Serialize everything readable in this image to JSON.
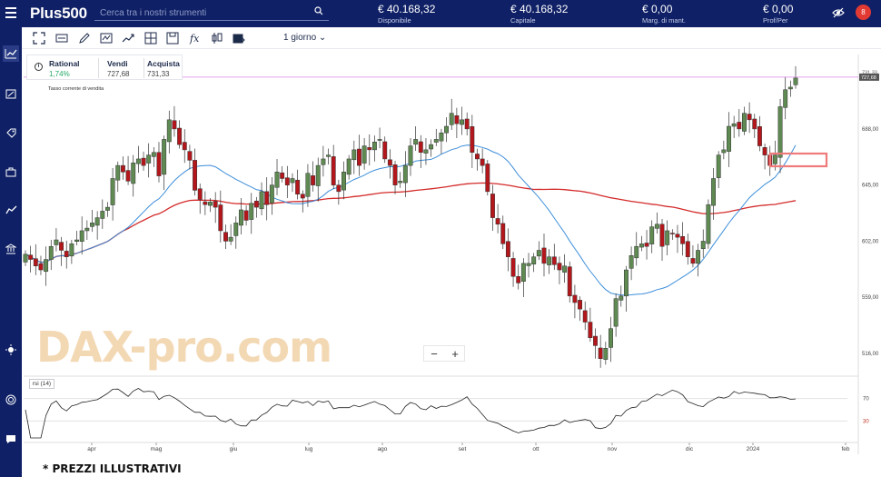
{
  "app": {
    "logo": "Plus500",
    "search_placeholder": "Cerca tra i nostri strumenti"
  },
  "account": [
    {
      "value": "€ 40.168,32",
      "label": "Disponibile"
    },
    {
      "value": "€ 40.168,32",
      "label": "Capitale"
    },
    {
      "value": "€ 0,00",
      "label": "Marg. di mant."
    },
    {
      "value": "€ 0,00",
      "label": "Prof/Per"
    }
  ],
  "notifications": {
    "count": "8"
  },
  "toolbar": {
    "period": "1 giorno"
  },
  "quote": {
    "name": "Rational",
    "change": "1,74%",
    "sell_label": "Vendi",
    "sell": "727,68",
    "buy_label": "Acquista",
    "buy": "731,33"
  },
  "rate_label": "Tasso corrente di vendita",
  "watermark": "DAX-pro.com",
  "zoom": {
    "minus": "−",
    "plus": "+"
  },
  "rsi_label": "rsi (14)",
  "footer": "* PREZZI ILLUSTRATIVI",
  "colors": {
    "up": "#5f8a52",
    "down": "#b3161b",
    "ma_fast": "#3d8ed9",
    "ma_slow": "#d42a2a",
    "rate_line": "#d986e0",
    "marker": "#f07a7a",
    "brand": "#0f2066"
  },
  "chart_data": {
    "type": "candlestick",
    "y_ticks": [
      "731,33",
      "688,00",
      "645,00",
      "602,00",
      "559,00",
      "516,00"
    ],
    "y_range": [
      500,
      745
    ],
    "x_ticks": [
      "apr",
      "mag",
      "giu",
      "lug",
      "ago",
      "set",
      "ott",
      "nov",
      "dic",
      "2024",
      "feb"
    ],
    "current_price_label": "727,68",
    "rsi": {
      "ticks": [
        "70",
        "30"
      ],
      "range": [
        0,
        100
      ]
    },
    "closes": [
      592,
      588,
      583,
      580,
      588,
      598,
      603,
      595,
      590,
      600,
      603,
      610,
      612,
      616,
      620,
      625,
      628,
      650,
      660,
      655,
      648,
      662,
      665,
      660,
      668,
      670,
      652,
      680,
      695,
      688,
      676,
      672,
      664,
      641,
      634,
      630,
      632,
      628,
      610,
      602,
      605,
      616,
      626,
      618,
      631,
      628,
      640,
      630,
      645,
      655,
      650,
      645,
      650,
      638,
      635,
      654,
      645,
      660,
      665,
      668,
      645,
      640,
      655,
      665,
      672,
      660,
      675,
      672,
      678,
      680,
      665,
      660,
      645,
      648,
      660,
      675,
      680,
      670,
      672,
      676,
      680,
      685,
      690,
      700,
      692,
      695,
      688,
      670,
      665,
      660,
      640,
      620,
      615,
      600,
      590,
      575,
      570,
      585,
      585,
      590,
      595,
      585,
      590,
      584,
      580,
      583,
      560,
      555,
      550,
      540,
      528,
      522,
      512,
      520,
      535,
      558,
      560,
      580,
      591,
      598,
      600,
      598,
      613,
      615,
      598,
      610,
      608,
      605,
      600,
      590,
      585,
      595,
      602,
      630,
      650,
      668,
      672,
      690,
      692,
      688,
      700,
      695,
      688,
      675,
      668,
      660,
      668,
      705,
      718,
      720,
      727
    ]
  }
}
